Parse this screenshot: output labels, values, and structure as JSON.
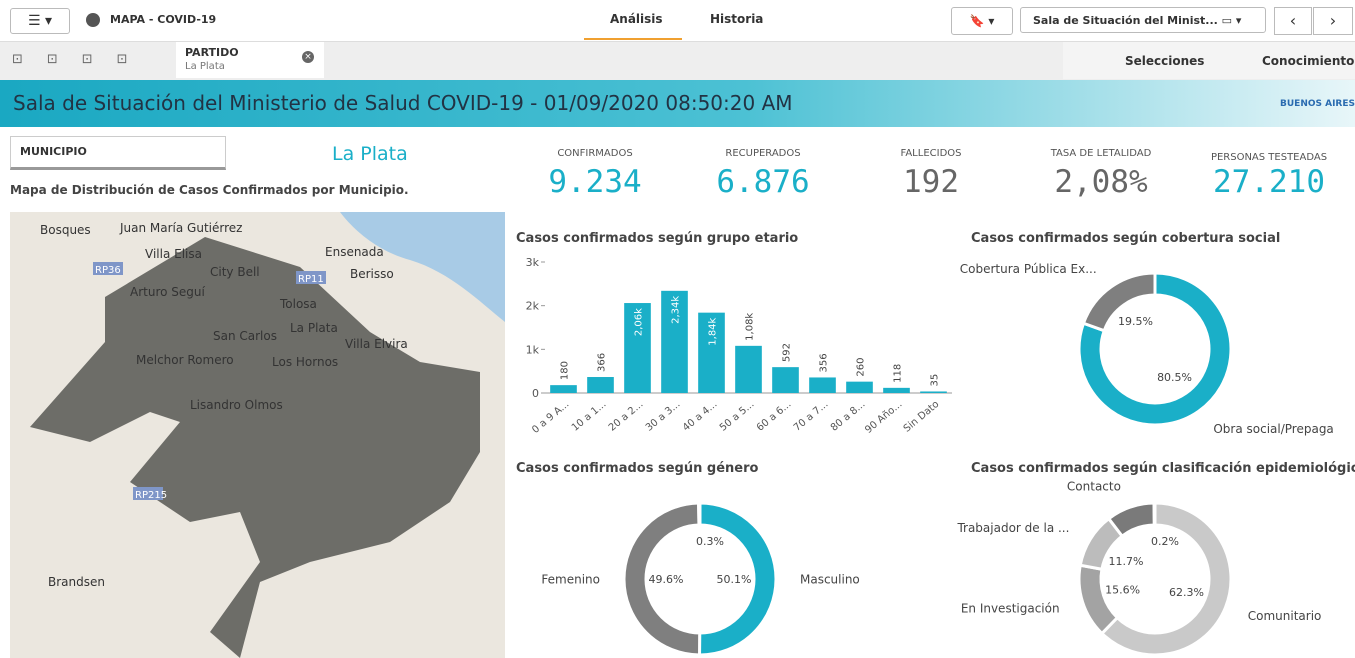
{
  "toolbar": {
    "app": "MAPA - COVID-19",
    "tabs": [
      "Análisis",
      "Historia"
    ],
    "sheet": "Sala de Situación del Minist...",
    "selection_field": "PARTIDO",
    "selection_value": "La Plata",
    "selections": "Selecciones",
    "insights": "Conocimientos"
  },
  "header": {
    "title": "Sala de Situación del Ministerio de Salud COVID-19 - 01/09/2020 08:50:20 AM",
    "logo": "BUENOS AIRES"
  },
  "filter": {
    "label": "MUNICIPIO",
    "selected": "La Plata"
  },
  "kpis": [
    {
      "label": "CONFIRMADOS",
      "value": "9.234"
    },
    {
      "label": "RECUPERADOS",
      "value": "6.876"
    },
    {
      "label": "FALLECIDOS",
      "value": "192"
    },
    {
      "label": "TASA DE LETALIDAD",
      "value": "2,08%"
    },
    {
      "label": "PERSONAS TESTEADAS",
      "value": "27.210"
    }
  ],
  "map": {
    "title": "Mapa de Distribución de Casos Confirmados por Municipio.",
    "places": [
      "Bosques",
      "Juan María Gutiérrez",
      "Ensenada",
      "Villa Elisa",
      "City Bell",
      "Berisso",
      "RP36",
      "RP11",
      "Arturo Seguí",
      "Tolosa",
      "La Plata",
      "San Carlos",
      "Villa Elvira",
      "Melchor Romero",
      "Los Hornos",
      "Lisandro Olmos",
      "RP215",
      "Brandsen"
    ]
  },
  "chart_data": [
    {
      "type": "bar",
      "title": "Casos confirmados según grupo etario",
      "categories": [
        "0 a 9 A...",
        "10 a 1...",
        "20 a 2...",
        "30 a 3...",
        "40 a 4...",
        "50 a 5...",
        "60 a 6...",
        "70 a 7...",
        "80 a 8...",
        "90 Año...",
        "Sin Dato"
      ],
      "values": [
        180,
        366,
        2060,
        2340,
        1840,
        1080,
        592,
        356,
        260,
        118,
        35
      ],
      "value_labels": [
        "180",
        "366",
        "2,06k",
        "2,34k",
        "1,84k",
        "1,08k",
        "592",
        "356",
        "260",
        "118",
        "35"
      ],
      "color": "#1aafc8",
      "ylim": [
        0,
        3000
      ],
      "yticks": [
        0,
        {
          "value": 1000,
          "label": "1k"
        },
        {
          "value": 2000,
          "label": "2k"
        },
        {
          "value": 3000,
          "label": "3k"
        }
      ]
    },
    {
      "type": "donut",
      "title": "Casos confirmados según cobertura social",
      "categories": [
        "Obra social/Prepaga",
        "Cobertura Pública Ex..."
      ],
      "values": [
        80.5,
        19.5
      ],
      "value_labels": [
        "80.5%",
        "19.5%"
      ],
      "colors": [
        "#1aafc8",
        "#7f7f7f"
      ]
    },
    {
      "type": "donut",
      "title": "Casos confirmados según género",
      "categories": [
        "Masculino",
        "Femenino",
        null
      ],
      "values": [
        50.1,
        49.6,
        0.3
      ],
      "value_labels": [
        "50.1%",
        "49.6%",
        "0.3%"
      ],
      "colors": [
        "#1aafc8",
        "#7f7f7f",
        "#555555"
      ]
    },
    {
      "type": "donut",
      "title": "Casos confirmados según clasificación epidemiológica",
      "categories": [
        "Comunitario",
        "En Investigación",
        "Trabajador de la ...",
        "Contacto",
        null
      ],
      "values": [
        62.3,
        15.6,
        11.7,
        10.2,
        0.2
      ],
      "value_labels": [
        "62.3%",
        "15.6%",
        "11.7%",
        null,
        "0.2%"
      ],
      "colors": [
        "#c9c9c9",
        "#a3a3a3",
        "#bcbcbc",
        "#7a7a7a",
        "#555555"
      ]
    }
  ]
}
